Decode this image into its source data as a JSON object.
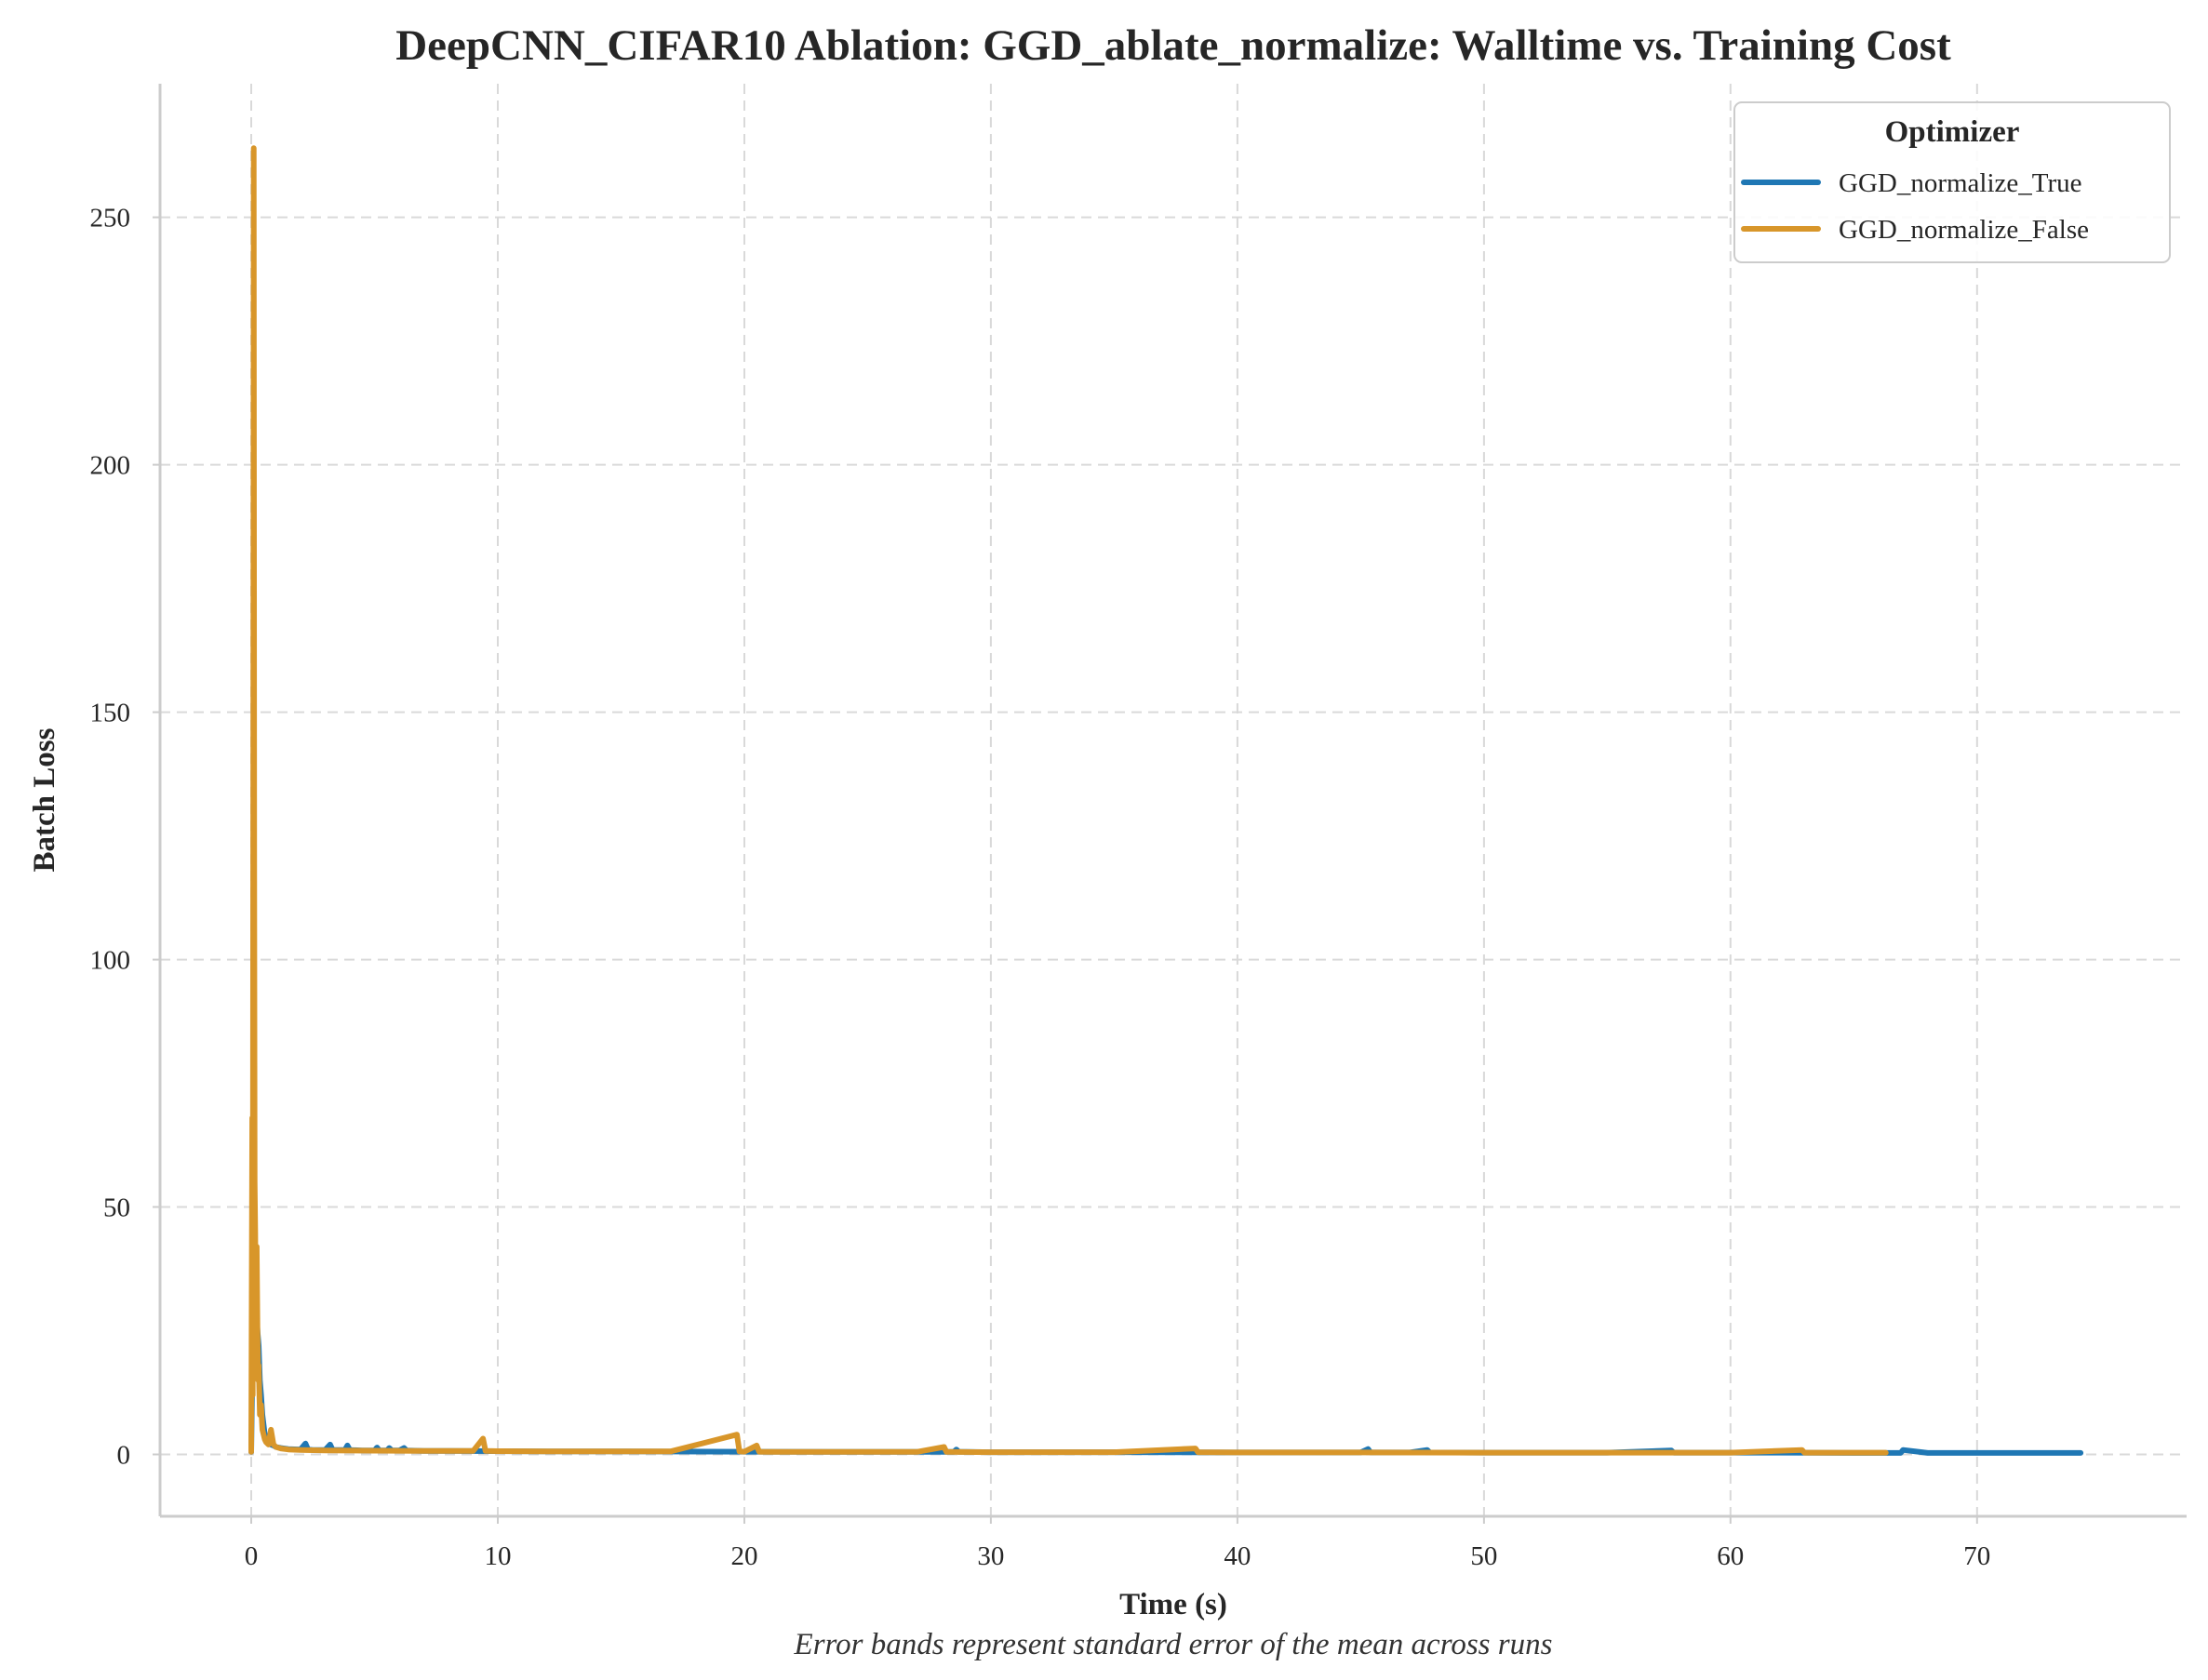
{
  "chart_data": {
    "type": "line",
    "title": "DeepCNN_CIFAR10 Ablation: GGD_ablate_normalize: Walltime vs. Training Cost",
    "xlabel": "Time (s)",
    "ylabel": "Batch Loss",
    "caption": "Error bands represent standard error of the mean across runs",
    "xlim": [
      -3.7,
      78.5
    ],
    "ylim": [
      -12.5,
      277
    ],
    "xticks": [
      0,
      10,
      20,
      30,
      40,
      50,
      60,
      70
    ],
    "yticks": [
      0,
      50,
      100,
      150,
      200,
      250
    ],
    "grid": true,
    "legend": {
      "title": "Optimizer",
      "placement": "top-right"
    },
    "series": [
      {
        "name": "GGD_normalize_True",
        "color": "#1f77b4",
        "x": [
          0.0,
          0.05,
          0.1,
          0.15,
          0.2,
          0.25,
          0.3,
          0.35,
          0.4,
          0.45,
          0.5,
          0.55,
          0.6,
          0.7,
          0.8,
          0.9,
          1.0,
          1.2,
          1.5,
          2.0,
          2.2,
          2.3,
          2.5,
          3.0,
          3.2,
          3.3,
          3.5,
          3.8,
          3.9,
          4.0,
          4.5,
          5.0,
          5.1,
          5.2,
          5.5,
          5.6,
          5.7,
          6.0,
          6.2,
          6.3,
          7.0,
          8.0,
          10.0,
          12.0,
          15.0,
          20.0,
          25.0,
          28.5,
          28.6,
          28.7,
          29.0,
          30.0,
          35.0,
          40.0,
          45.0,
          45.3,
          45.4,
          47.0,
          47.7,
          47.8,
          50.0,
          55.0,
          57.6,
          57.7,
          60.0,
          62.0,
          65.0,
          66.5,
          66.9,
          67.0,
          68.0,
          70.0,
          72.0,
          74.2
        ],
        "y": [
          0.5,
          20,
          35,
          38,
          30,
          25,
          22,
          15,
          12,
          8,
          6,
          4,
          3,
          2.5,
          2,
          1.8,
          1.5,
          1.3,
          1.1,
          1.0,
          2.2,
          1.0,
          0.9,
          0.9,
          2.0,
          0.9,
          0.9,
          0.9,
          1.8,
          0.9,
          0.8,
          0.8,
          1.4,
          0.8,
          0.8,
          1.3,
          0.8,
          0.8,
          1.3,
          0.8,
          0.7,
          0.7,
          0.65,
          0.6,
          0.6,
          0.55,
          0.5,
          0.5,
          1.0,
          0.5,
          0.5,
          0.45,
          0.45,
          0.4,
          0.4,
          1.1,
          0.4,
          0.4,
          0.9,
          0.4,
          0.35,
          0.35,
          0.8,
          0.35,
          0.35,
          0.35,
          0.3,
          0.3,
          0.3,
          0.9,
          0.3,
          0.3,
          0.3,
          0.3
        ]
      },
      {
        "name": "GGD_normalize_False",
        "color": "#d8962a",
        "x": [
          0.0,
          0.04,
          0.06,
          0.08,
          0.1,
          0.12,
          0.14,
          0.16,
          0.18,
          0.2,
          0.22,
          0.25,
          0.28,
          0.3,
          0.35,
          0.4,
          0.45,
          0.5,
          0.55,
          0.6,
          0.7,
          0.8,
          0.9,
          1.0,
          1.2,
          1.5,
          2.0,
          3.0,
          5.0,
          7.0,
          9.0,
          9.4,
          9.5,
          10.0,
          12.0,
          15.0,
          17.0,
          19.7,
          19.8,
          20.0,
          20.5,
          20.6,
          21.0,
          25.0,
          27.0,
          28.1,
          28.2,
          30.0,
          35.0,
          38.3,
          38.4,
          40.0,
          45.0,
          50.0,
          55.0,
          60.0,
          62.9,
          63.0,
          66.3
        ],
        "y": [
          0.5,
          68,
          12,
          140,
          264,
          120,
          55,
          45,
          30,
          20,
          42,
          25,
          15,
          18,
          8,
          10,
          5,
          4,
          3,
          2.5,
          2,
          5,
          2,
          1.5,
          1.2,
          1.0,
          0.9,
          0.8,
          0.75,
          0.7,
          0.7,
          3.2,
          0.7,
          0.65,
          0.6,
          0.6,
          0.6,
          4.0,
          0.6,
          0.55,
          1.8,
          0.55,
          0.5,
          0.5,
          0.5,
          1.5,
          0.5,
          0.45,
          0.45,
          1.2,
          0.45,
          0.4,
          0.4,
          0.35,
          0.35,
          0.35,
          0.9,
          0.35,
          0.35
        ]
      }
    ]
  }
}
